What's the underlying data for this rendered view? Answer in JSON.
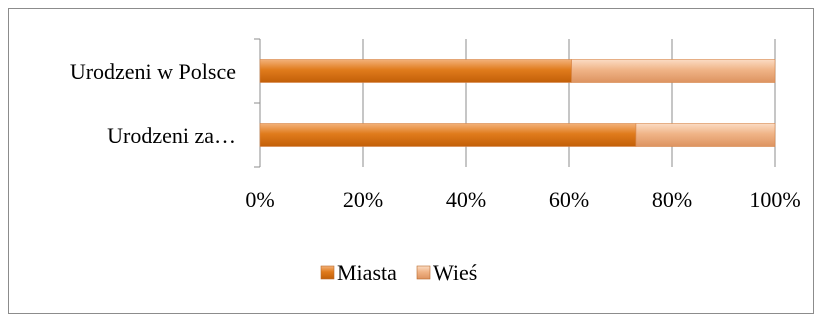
{
  "chart_data": {
    "type": "bar",
    "orientation": "horizontal",
    "stacked": "percent",
    "categories": [
      "Urodzeni w Polsce",
      "Urodzeni za…"
    ],
    "series": [
      {
        "name": "Miasta",
        "values": [
          60.5,
          73
        ],
        "color": "#e07b1c"
      },
      {
        "name": "Wieś",
        "values": [
          39.5,
          27
        ],
        "color": "#f0b487"
      }
    ],
    "xlim": [
      0,
      100
    ],
    "x_ticks": [
      "0%",
      "20%",
      "40%",
      "60%",
      "80%",
      "100%"
    ],
    "grid": "vertical",
    "legend_position": "bottom"
  }
}
